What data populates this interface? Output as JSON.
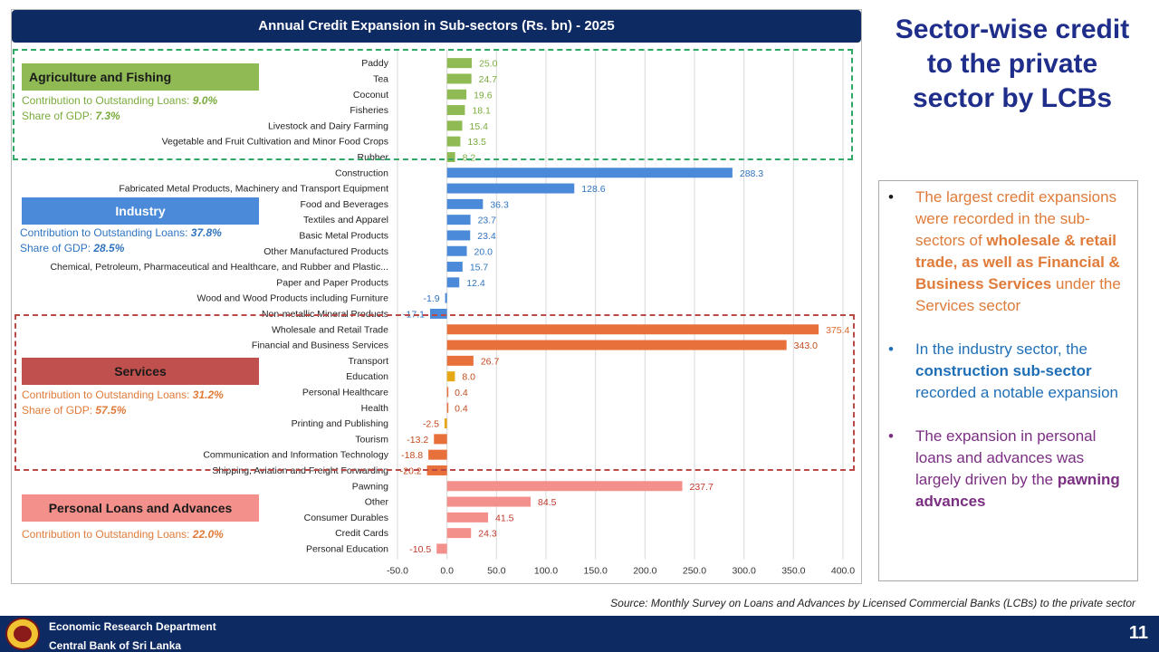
{
  "chart_data": {
    "type": "bar",
    "orientation": "horizontal",
    "title": "Annual Credit Expansion in Sub-sectors (Rs. bn) - 2025",
    "xlim": [
      -50,
      400
    ],
    "x_ticks": [
      "-50.0",
      "0.0",
      "50.0",
      "100.0",
      "150.0",
      "200.0",
      "250.0",
      "300.0",
      "350.0",
      "400.0"
    ],
    "x_tick_values": [
      -50,
      0,
      50,
      100,
      150,
      200,
      250,
      300,
      350,
      400
    ],
    "grid": "vertical",
    "categories": [
      "Paddy",
      "Tea",
      "Coconut",
      "Fisheries",
      "Livestock and Dairy Farming",
      "Vegetable and Fruit Cultivation and Minor Food Crops",
      "Rubber",
      "Construction",
      "Fabricated Metal Products, Machinery and Transport Equipment",
      "Food and Beverages",
      "Textiles and Apparel",
      "Basic Metal Products",
      "Other Manufactured Products",
      "Chemical, Petroleum, Pharmaceutical and Healthcare, and Rubber and Plastic...",
      "Paper and Paper Products",
      "Wood and Wood Products including Furniture",
      "Non-metallic Mineral Products",
      "Wholesale and Retail Trade",
      "Financial and Business Services",
      "Transport",
      "Education",
      "Personal Healthcare",
      "Health",
      "Printing and Publishing",
      "Tourism",
      "Communication and Information Technology",
      "Shipping, Aviation and Freight Forwarding",
      "Pawning",
      "Other",
      "Consumer Durables",
      "Credit Cards",
      "Personal Education"
    ],
    "values": [
      25.0,
      24.7,
      19.6,
      18.1,
      15.4,
      13.5,
      8.2,
      288.3,
      128.6,
      36.3,
      23.7,
      23.4,
      20.0,
      15.7,
      12.4,
      -1.9,
      -17.1,
      375.4,
      343.0,
      26.7,
      8.0,
      0.4,
      0.4,
      -2.5,
      -13.2,
      -18.8,
      -20.2,
      237.7,
      84.5,
      41.5,
      24.3,
      -10.5
    ],
    "value_labels": [
      "25.0",
      "24.7",
      "19.6",
      "18.1",
      "15.4",
      "13.5",
      "8.2",
      "288.3",
      "128.6",
      "36.3",
      "23.7",
      "23.4",
      "20.0",
      "15.7",
      "12.4",
      "-1.9",
      "-17.1",
      "375.4",
      "343.0",
      "26.7",
      "8.0",
      "0.4",
      "0.4",
      "-2.5",
      "-13.2",
      "-18.8",
      "-20.2",
      "237.7",
      "84.5",
      "41.5",
      "24.3",
      "-10.5"
    ],
    "bar_colors": [
      "#8fba54",
      "#8fba54",
      "#8fba54",
      "#8fba54",
      "#8fba54",
      "#8fba54",
      "#8fba54",
      "#4a8ad8",
      "#4a8ad8",
      "#4a8ad8",
      "#4a8ad8",
      "#4a8ad8",
      "#4a8ad8",
      "#4a8ad8",
      "#4a8ad8",
      "#4a8ad8",
      "#4a8ad8",
      "#e8703a",
      "#e8703a",
      "#e8703a",
      "#e6a817",
      "#e8703a",
      "#e8703a",
      "#e6a817",
      "#e8703a",
      "#e8703a",
      "#e8703a",
      "#f4908c",
      "#f4908c",
      "#f4908c",
      "#f4908c",
      "#f4908c"
    ],
    "label_colors": [
      "#7aab3c",
      "#7aab3c",
      "#7aab3c",
      "#7aab3c",
      "#7aab3c",
      "#7aab3c",
      "#7aab3c",
      "#2f74c0",
      "#2f74c0",
      "#2f74c0",
      "#2f74c0",
      "#2f74c0",
      "#2f74c0",
      "#2f74c0",
      "#2f74c0",
      "#2f74c0",
      "#2f74c0",
      "#e06a2e",
      "#c24a1e",
      "#c24a1e",
      "#c24a1e",
      "#c24a1e",
      "#c24a1e",
      "#c24a1e",
      "#c24a1e",
      "#c24a1e",
      "#c24a1e",
      "#c0392b",
      "#c0392b",
      "#c0392b",
      "#c0392b",
      "#c0392b"
    ]
  },
  "groups": [
    {
      "name": "Agriculture and Fishing",
      "contribution_label": "Contribution to Outstanding Loans: ",
      "contribution_value": "9.0%",
      "gdp_label": "Share of GDP: ",
      "gdp_value": "7.3%",
      "label_bg": "#8fba54",
      "label_fg": "#1a1a1a",
      "note_color": "#7aab3c",
      "box_color": "#2fa866"
    },
    {
      "name": "Industry",
      "contribution_label": "Contribution to Outstanding Loans: ",
      "contribution_value": "37.8%",
      "gdp_label": "Share of GDP: ",
      "gdp_value": "28.5%",
      "label_bg": "#4a8ad8",
      "label_fg": "#ffffff",
      "note_color": "#2f74c0"
    },
    {
      "name": "Services",
      "contribution_label": "Contribution to Outstanding Loans: ",
      "contribution_value": "31.2%",
      "gdp_label": "Share of GDP: ",
      "gdp_value": "57.5%",
      "label_bg": "#c0504d",
      "label_fg": "#1a1a1a",
      "note_color": "#e07b39",
      "box_color": "#b94a48"
    },
    {
      "name": "Personal Loans and Advances",
      "contribution_label": "Contribution to Outstanding Loans: ",
      "contribution_value": "22.0%",
      "label_bg": "#f4908c",
      "label_fg": "#1a1a1a",
      "note_color": "#e07b39"
    }
  ],
  "side_title": "Sector-wise credit to the private sector by LCBs",
  "bullets": [
    {
      "marker": "•",
      "pre": " The largest credit expansions were recorded in the sub-sectors of ",
      "bold": "wholesale & retail trade, as well as Financial & Business Services",
      "post": " under the Services sector"
    },
    {
      "marker": "•",
      "pre": "In the industry sector, the ",
      "bold": "construction sub-sector",
      "post": " recorded a notable expansion"
    },
    {
      "marker": "•",
      "pre": "The expansion in personal loans and advances was largely driven by the ",
      "bold": "pawning advances",
      "post": ""
    }
  ],
  "source_note": "Source:  Monthly Survey on Loans and Advances  by Licensed Commercial Banks (LCBs) to the private sector",
  "footer": {
    "line1": "Economic Research Department",
    "line2": "Central Bank of Sri Lanka",
    "page_number": "11"
  },
  "colors": {
    "navy": "#0e2a63",
    "title_blue": "#1f2e8a",
    "grid": "#d9d9d9"
  }
}
